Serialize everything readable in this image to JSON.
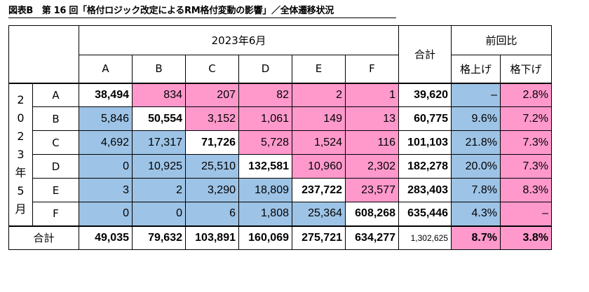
{
  "title": "図表B　第 16 回「格付ロジック改定によるRM格付変動の影響」／全体遷移状況",
  "header": {
    "period": "2023年6月",
    "total": "合計",
    "comparison": "前回比",
    "grades": [
      "A",
      "B",
      "C",
      "D",
      "E",
      "F"
    ],
    "upgrade": "格上げ",
    "downgrade": "格下げ"
  },
  "row_period": [
    "2",
    "0",
    "2",
    "3",
    "年",
    "5",
    "月"
  ],
  "rows": [
    {
      "grade": "A",
      "values": [
        "38,494",
        "834",
        "207",
        "82",
        "2",
        "1"
      ],
      "total": "39,620",
      "up": "–",
      "down": "2.8%"
    },
    {
      "grade": "B",
      "values": [
        "5,846",
        "50,554",
        "3,152",
        "1,061",
        "149",
        "13"
      ],
      "total": "60,775",
      "up": "9.6%",
      "down": "7.2%"
    },
    {
      "grade": "C",
      "values": [
        "4,692",
        "17,317",
        "71,726",
        "5,728",
        "1,524",
        "116"
      ],
      "total": "101,103",
      "up": "21.8%",
      "down": "7.3%"
    },
    {
      "grade": "D",
      "values": [
        "0",
        "10,925",
        "25,510",
        "132,581",
        "10,960",
        "2,302"
      ],
      "total": "182,278",
      "up": "20.0%",
      "down": "7.3%"
    },
    {
      "grade": "E",
      "values": [
        "3",
        "2",
        "3,290",
        "18,809",
        "237,722",
        "23,577"
      ],
      "total": "283,403",
      "up": "7.8%",
      "down": "8.3%"
    },
    {
      "grade": "F",
      "values": [
        "0",
        "0",
        "6",
        "1,808",
        "25,364",
        "608,268"
      ],
      "total": "635,446",
      "up": "4.3%",
      "down": "–"
    }
  ],
  "total_row": {
    "label": "合計",
    "values": [
      "49,035",
      "79,632",
      "103,891",
      "160,069",
      "275,721",
      "634,277"
    ],
    "total": "1,302,625",
    "up": "8.7%",
    "down": "3.8%"
  },
  "colors": {
    "upgrade": "#9dc3e6",
    "downgrade": "#ff99cc",
    "same": "#ffffff"
  }
}
